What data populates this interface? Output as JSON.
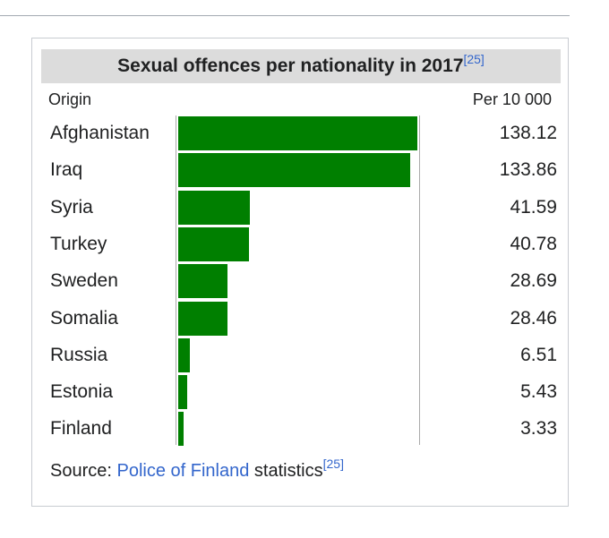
{
  "chart_data": {
    "type": "bar",
    "orientation": "horizontal",
    "title": "Sexual offences per nationality in 2017",
    "title_ref": "[25]",
    "xlabel": "Per 10 000",
    "ylabel": "Origin",
    "categories": [
      "Afghanistan",
      "Iraq",
      "Syria",
      "Turkey",
      "Sweden",
      "Somalia",
      "Russia",
      "Estonia",
      "Finland"
    ],
    "values": [
      138.12,
      133.86,
      41.59,
      40.78,
      28.69,
      28.46,
      6.51,
      5.43,
      3.33
    ],
    "value_labels": [
      "138.12",
      "133.86",
      "41.59",
      "40.78",
      "28.69",
      "28.46",
      "6.51",
      "5.43",
      "3.33"
    ],
    "xlim": [
      0,
      140
    ],
    "bar_color": "#007f00"
  },
  "source": {
    "prefix": "Source: ",
    "link_text": "Police of Finland",
    "suffix": " statistics",
    "ref": "[25]"
  },
  "colors": {
    "link": "#3366cc",
    "title_bg": "#dcdcdc"
  }
}
